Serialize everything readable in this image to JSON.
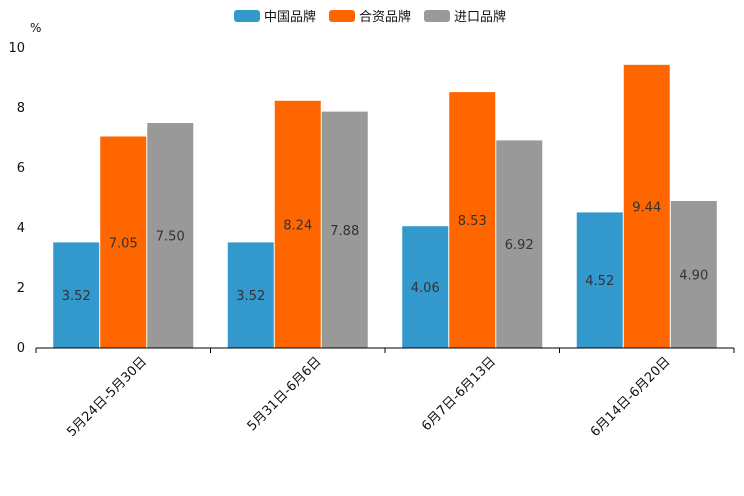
{
  "chart_data": {
    "type": "bar",
    "unit": "%",
    "categories": [
      "5月24日-5月30日",
      "5月31日-6月6日",
      "6月7日-6月13日",
      "6月14日-6月20日"
    ],
    "series": [
      {
        "name": "中国品牌",
        "color": "#3399cc",
        "values": [
          3.52,
          3.52,
          4.06,
          4.52
        ],
        "labels": [
          "3.52",
          "3.52",
          "4.06",
          "4.52"
        ]
      },
      {
        "name": "合资品牌",
        "color": "#ff6600",
        "values": [
          7.05,
          8.24,
          8.53,
          9.44
        ],
        "labels": [
          "7.05",
          "8.24",
          "8.53",
          "9.44"
        ]
      },
      {
        "name": "进口品牌",
        "color": "#999999",
        "values": [
          7.5,
          7.88,
          6.92,
          4.9
        ],
        "labels": [
          "7.50",
          "7.88",
          "6.92",
          "4.90"
        ]
      }
    ],
    "yticks": [
      "0",
      "2",
      "4",
      "6",
      "8",
      "10"
    ],
    "ylim": [
      0,
      10
    ],
    "legend_position": "top-center",
    "grid": false
  }
}
